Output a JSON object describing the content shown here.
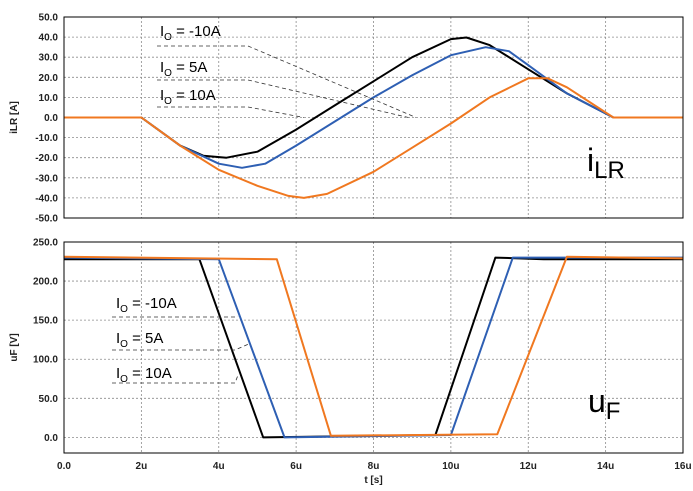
{
  "chart_data": [
    {
      "type": "line",
      "ylabel": "iLR [A]",
      "big_label": {
        "main": "i",
        "sub": "LR"
      },
      "xlim": [
        0,
        16
      ],
      "ylim": [
        -50,
        50
      ],
      "x_tick_values": [
        0,
        2,
        4,
        6,
        8,
        10,
        12,
        14,
        16
      ],
      "y_ticks": [
        "50.0",
        "40.0",
        "30.0",
        "20.0",
        "10.0",
        "0.0",
        "-10.0",
        "-20.0",
        "-30.0",
        "-40.0",
        "-50.0"
      ],
      "y_tick_values": [
        50,
        40,
        30,
        20,
        10,
        0,
        -10,
        -20,
        -30,
        -40,
        -50
      ],
      "annotations": [
        {
          "prefix": "I",
          "sub": "O",
          "rest": " = -10A",
          "target": [
            9.1,
            0
          ]
        },
        {
          "prefix": "I",
          "sub": "O",
          "rest": " = 5A",
          "target": [
            8.9,
            0
          ]
        },
        {
          "prefix": "I",
          "sub": "O",
          "rest": " = 10A",
          "target": [
            6.2,
            0
          ]
        }
      ],
      "series": [
        {
          "color": "#000000",
          "x": [
            0,
            2,
            3,
            3.6,
            4.2,
            5,
            6,
            7,
            8,
            9,
            10,
            10.4,
            11,
            12,
            13,
            14.2,
            16
          ],
          "y": [
            0,
            0,
            -14,
            -19,
            -20,
            -17,
            -6,
            6,
            18,
            30,
            39,
            39.8,
            36,
            24,
            12,
            0,
            0
          ]
        },
        {
          "color": "#2e5fb3",
          "x": [
            0,
            2,
            3,
            4,
            4.6,
            5.2,
            6,
            7,
            8,
            9,
            10,
            10.9,
            11.5,
            12,
            13,
            14.2,
            16
          ],
          "y": [
            0,
            0,
            -14,
            -23,
            -25,
            -23,
            -14,
            -2,
            10,
            21,
            31,
            35,
            33,
            26,
            12,
            0,
            0
          ]
        },
        {
          "color": "#f07820",
          "x": [
            0,
            2,
            3,
            4,
            5,
            5.8,
            6.2,
            6.8,
            8,
            9,
            10,
            11,
            12,
            12.5,
            13,
            14.2,
            16
          ],
          "y": [
            0,
            0,
            -14,
            -26,
            -34,
            -39,
            -40,
            -38,
            -27,
            -15,
            -3,
            10,
            19.5,
            19.5,
            15,
            0,
            0
          ]
        }
      ]
    },
    {
      "type": "line",
      "ylabel": "uF [V]",
      "xlabel": "t [s]",
      "big_label": {
        "main": "u",
        "sub": "F"
      },
      "xlim": [
        0,
        16
      ],
      "ylim": [
        -20,
        250
      ],
      "x_ticks": [
        "0.0",
        "2u",
        "4u",
        "6u",
        "8u",
        "10u",
        "12u",
        "14u",
        "16u"
      ],
      "x_tick_values": [
        0,
        2,
        4,
        6,
        8,
        10,
        12,
        14,
        16
      ],
      "y_ticks": [
        "250.0",
        "200.0",
        "150.0",
        "100.0",
        "50.0",
        "0.0"
      ],
      "y_tick_values": [
        250,
        200,
        150,
        100,
        50,
        0
      ],
      "annotations": [
        {
          "prefix": "I",
          "sub": "O",
          "rest": " = -10A",
          "target": [
            4.5,
            155
          ]
        },
        {
          "prefix": "I",
          "sub": "O",
          "rest": " = 5A",
          "target": [
            4.8,
            120
          ]
        },
        {
          "prefix": "I",
          "sub": "O",
          "rest": " = 10A",
          "target": [
            4.5,
            80
          ]
        }
      ],
      "series": [
        {
          "color": "#000000",
          "x": [
            0,
            3.5,
            5.15,
            9.6,
            11.15,
            12.4,
            16
          ],
          "y": [
            228,
            228,
            0,
            3,
            230,
            228,
            228
          ]
        },
        {
          "color": "#2e5fb3",
          "x": [
            0,
            4.0,
            5.7,
            10.0,
            11.6,
            12.6,
            16
          ],
          "y": [
            230,
            228,
            0,
            3,
            230,
            230,
            230
          ]
        },
        {
          "color": "#f07820",
          "x": [
            0,
            5.5,
            6.9,
            11.2,
            13.0,
            16
          ],
          "y": [
            231,
            228,
            2,
            4,
            231,
            229
          ]
        }
      ]
    }
  ]
}
